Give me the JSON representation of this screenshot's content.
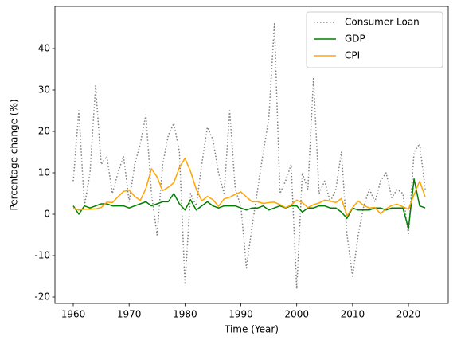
{
  "chart_data": {
    "type": "line",
    "xlabel": "Time (Year)",
    "ylabel": "Percentage change (%)",
    "x": [
      1960,
      1961,
      1962,
      1963,
      1964,
      1965,
      1966,
      1967,
      1968,
      1969,
      1970,
      1971,
      1972,
      1973,
      1974,
      1975,
      1976,
      1977,
      1978,
      1979,
      1980,
      1981,
      1982,
      1983,
      1984,
      1985,
      1986,
      1987,
      1988,
      1989,
      1990,
      1991,
      1992,
      1993,
      1994,
      1995,
      1996,
      1997,
      1998,
      1999,
      2000,
      2001,
      2002,
      2003,
      2004,
      2005,
      2006,
      2007,
      2008,
      2009,
      2010,
      2011,
      2012,
      2013,
      2014,
      2015,
      2016,
      2017,
      2018,
      2019,
      2020,
      2021,
      2022,
      2023
    ],
    "series": [
      {
        "name": "Consumer Loan",
        "color": "#808080",
        "dash": "dotted",
        "values": [
          8,
          25,
          2,
          10,
          31,
          12,
          14,
          5,
          10,
          14,
          3,
          12,
          17,
          24,
          5,
          -5,
          12,
          19,
          22,
          15,
          -17,
          5,
          2,
          12,
          21,
          18,
          10,
          5,
          25,
          6,
          2,
          -13,
          -3,
          6,
          15,
          23,
          46,
          5,
          8,
          12,
          -18,
          10,
          6,
          33,
          5,
          8,
          3,
          6,
          15,
          -5,
          -15,
          -5,
          2,
          6,
          3,
          8,
          10,
          4,
          6,
          5,
          -5,
          15,
          17,
          6
        ]
      },
      {
        "name": "GDP",
        "color": "#008000",
        "dash": "solid",
        "values": [
          2,
          0,
          2,
          1.5,
          2,
          2.5,
          2.5,
          2,
          2,
          2,
          1.5,
          2,
          2.5,
          3,
          2,
          2.5,
          3,
          3,
          5,
          2.5,
          1,
          3.5,
          1,
          2,
          3,
          2,
          1.5,
          2,
          2,
          2,
          1.5,
          1,
          1.5,
          1.5,
          2,
          1,
          1.5,
          2,
          1.5,
          2,
          2,
          0.5,
          1.5,
          1.5,
          2,
          2,
          1.5,
          1.5,
          0.5,
          -1,
          1.5,
          1,
          1,
          1,
          1.5,
          1.5,
          1,
          1.5,
          1.5,
          1.5,
          -3.4,
          8.5,
          2,
          1.5
        ]
      },
      {
        "name": "CPI",
        "color": "#ffa500",
        "dash": "solid",
        "values": [
          1.5,
          1,
          1.2,
          1.2,
          1.3,
          1.6,
          2.9,
          2.8,
          4.2,
          5.5,
          5.8,
          4.3,
          3.3,
          6.2,
          11,
          9,
          5.7,
          6.5,
          7.6,
          11.3,
          13.5,
          10.3,
          6.1,
          3.2,
          4.3,
          3.5,
          1.9,
          3.7,
          4.1,
          4.8,
          5.4,
          4.2,
          3,
          3,
          2.6,
          2.8,
          2.9,
          2.3,
          1.6,
          2.2,
          3.4,
          2.8,
          1.6,
          2.3,
          2.7,
          3.4,
          3.2,
          2.8,
          3.8,
          -0.4,
          1.6,
          3.2,
          2.1,
          1.5,
          1.6,
          0.1,
          1.3,
          2.1,
          2.4,
          1.8,
          1.2,
          4.7,
          8,
          4.1
        ]
      }
    ],
    "xlim": [
      1956.72,
      2027.12
    ],
    "xticks": [
      1960,
      1970,
      1980,
      1990,
      2000,
      2010,
      2020
    ],
    "ylim": [
      -21.54,
      50.19
    ],
    "yticks": [
      -20,
      -10,
      0,
      10,
      20,
      30,
      40
    ],
    "legend": "upper right",
    "grid": false
  }
}
